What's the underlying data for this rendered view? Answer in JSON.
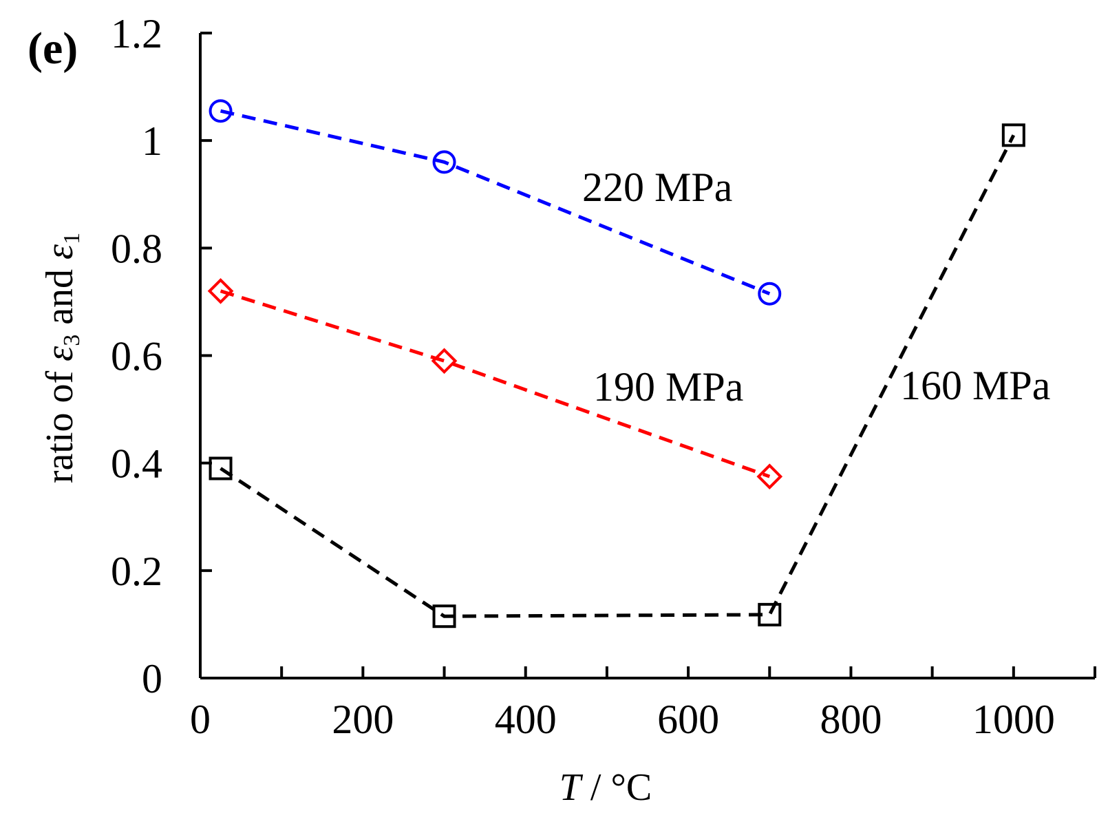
{
  "chart_data": {
    "type": "line",
    "panel_label": "(e)",
    "xlabel": {
      "symbol": "T",
      "unit": " / °C"
    },
    "ylabel": {
      "prefix": "ratio of ",
      "eps": "ε",
      "sub_a": "3",
      "mid": " and ",
      "sub_b": "1"
    },
    "xlim": [
      0,
      1100
    ],
    "ylim": [
      0,
      1.2
    ],
    "x_ticks": [
      0,
      200,
      400,
      600,
      800,
      1000
    ],
    "x_ticks_minor": [
      100,
      300,
      500,
      700,
      900,
      1100
    ],
    "x_tick_labels": [
      "0",
      "200",
      "400",
      "600",
      "800",
      "1000"
    ],
    "y_ticks": [
      0,
      0.2,
      0.4,
      0.6,
      0.8,
      1.0,
      1.2
    ],
    "y_tick_labels": [
      "0",
      "0.2",
      "0.4",
      "0.6",
      "0.8",
      "1",
      "1.2"
    ],
    "grid": false,
    "series": [
      {
        "name": "220 MPa",
        "label": "220 MPa",
        "color": "#0000ff",
        "marker": "circle",
        "line_style": "dashed",
        "x": [
          25,
          300,
          700
        ],
        "y": [
          1.055,
          0.96,
          0.715
        ]
      },
      {
        "name": "190 MPa",
        "label": "190 MPa",
        "color": "#ff0000",
        "marker": "diamond",
        "line_style": "dashed",
        "x": [
          25,
          300,
          700
        ],
        "y": [
          0.72,
          0.59,
          0.375
        ]
      },
      {
        "name": "160 MPa",
        "label": "160 MPa",
        "color": "#000000",
        "marker": "square",
        "line_style": "dashed",
        "x": [
          25,
          300,
          700,
          1000
        ],
        "y": [
          0.39,
          0.115,
          0.118,
          1.01
        ]
      }
    ]
  }
}
